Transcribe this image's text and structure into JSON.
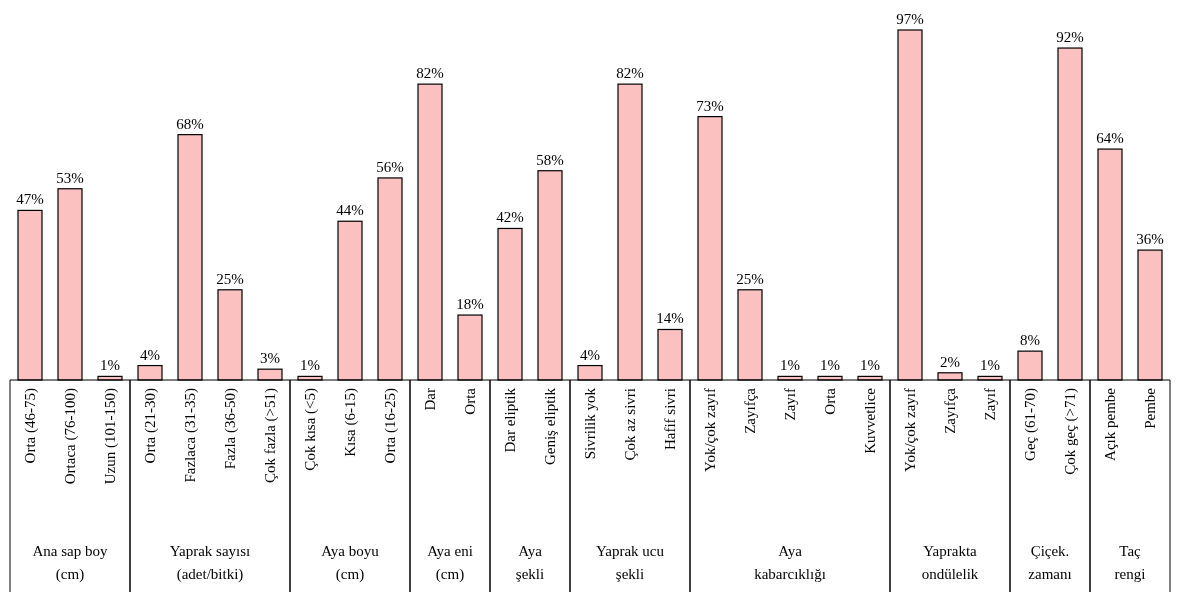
{
  "chart_data": [
    {
      "type": "bar",
      "xlabel": "Ana sap boy (cm)",
      "categories": [
        "Orta (46-75)",
        "Ortaca (76-100)",
        "Uzun (101-150)"
      ],
      "values": [
        47,
        53,
        1
      ],
      "value_labels": [
        "47%",
        "53%",
        "1%"
      ],
      "color": "#fbc0c0"
    },
    {
      "type": "bar",
      "xlabel": "Yaprak sayısı (adet/bitki)",
      "categories": [
        "Orta (21-30)",
        "Fazlaca (31-35)",
        "Fazla (36-50)",
        "Çok fazla (>51)"
      ],
      "values": [
        4,
        68,
        25,
        3
      ],
      "value_labels": [
        "4%",
        "68%",
        "25%",
        "3%"
      ],
      "color": "#fbc0c0"
    },
    {
      "type": "bar",
      "xlabel": "Aya boyu (cm)",
      "categories": [
        "Çok kısa (<5)",
        "Kısa (6-15)",
        "Orta (16-25)"
      ],
      "values": [
        1,
        44,
        56
      ],
      "value_labels": [
        "1%",
        "44%",
        "56%"
      ],
      "color": "#fbc0c0"
    },
    {
      "type": "bar",
      "xlabel": "Aya eni (cm)",
      "categories": [
        "Dar",
        "Orta"
      ],
      "values": [
        82,
        18
      ],
      "value_labels": [
        "82%",
        "18%"
      ],
      "color": "#fbc0c0"
    },
    {
      "type": "bar",
      "xlabel": "Aya şekli",
      "categories": [
        "Dar eliptik",
        "Geniş eliptik"
      ],
      "values": [
        42,
        58
      ],
      "value_labels": [
        "42%",
        "58%"
      ],
      "color": "#fbc0c0"
    },
    {
      "type": "bar",
      "xlabel": "Yaprak ucu şekli",
      "categories": [
        "Sivrilik yok",
        "Çok az sivri",
        "Hafif sivri"
      ],
      "values": [
        4,
        82,
        14
      ],
      "value_labels": [
        "4%",
        "82%",
        "14%"
      ],
      "color": "#fbc0c0"
    },
    {
      "type": "bar",
      "xlabel": "Aya kabarcıklığı",
      "categories": [
        "Yok/çok zayıf",
        "Zayıfça",
        "Zayıf",
        "Orta",
        "Kuvvetlice"
      ],
      "values": [
        73,
        25,
        1,
        1,
        1
      ],
      "value_labels": [
        "73%",
        "25%",
        "1%",
        "1%",
        "1%"
      ],
      "color": "#fbc0c0"
    },
    {
      "type": "bar",
      "xlabel": "Yaprakta ondülelik",
      "categories": [
        "Yok/çok zayıf",
        "Zayıfça",
        "Zayıf"
      ],
      "values": [
        97,
        2,
        1
      ],
      "value_labels": [
        "97%",
        "2%",
        "1%"
      ],
      "color": "#fbc0c0"
    },
    {
      "type": "bar",
      "xlabel": "Çiçek. zamanı",
      "categories": [
        "Geç (61-70)",
        "Çok geç (>71)"
      ],
      "values": [
        8,
        92
      ],
      "value_labels": [
        "8%",
        "92%"
      ],
      "color": "#fbc0c0"
    },
    {
      "type": "bar",
      "xlabel": "Taç rengi",
      "categories": [
        "Açık pembe",
        "Pembe"
      ],
      "values": [
        64,
        36
      ],
      "value_labels": [
        "64%",
        "36%"
      ],
      "color": "#fbc0c0"
    }
  ]
}
